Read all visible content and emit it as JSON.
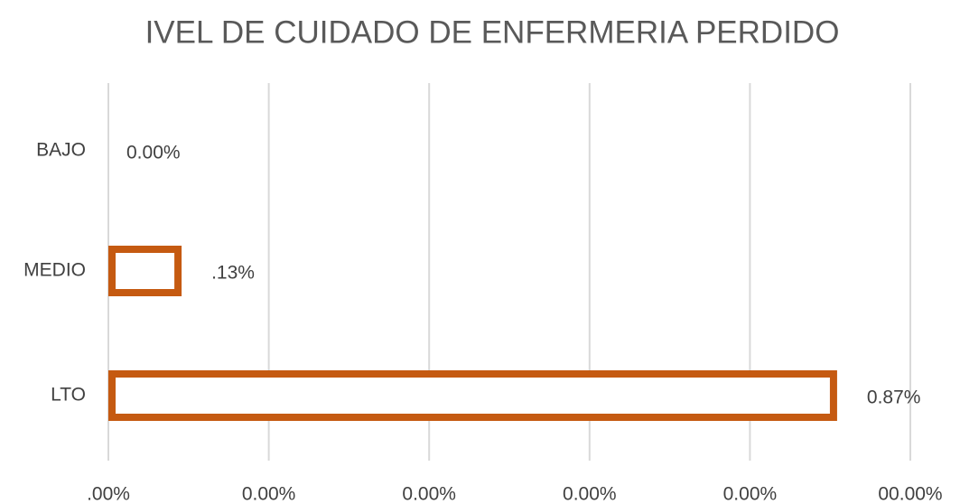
{
  "chart_data": {
    "type": "hbar",
    "title": "IVEL DE CUIDADO DE ENFERMERIA PERDIDO",
    "categories": [
      "BAJO",
      "MEDIO",
      "LTO"
    ],
    "values": [
      0,
      9.13,
      90.87
    ],
    "value_labels": [
      "0.00%",
      ".13%",
      "0.87%"
    ],
    "color": "#c55a11",
    "xlim": [
      0,
      100
    ],
    "xticks": [
      {
        "value": 0,
        "label": ".00%"
      },
      {
        "value": 20,
        "label": "0.00%"
      },
      {
        "value": 40,
        "label": "0.00%"
      },
      {
        "value": 60,
        "label": "0.00%"
      },
      {
        "value": 80,
        "label": "0.00%"
      },
      {
        "value": 100,
        "label": "00.00%"
      }
    ],
    "grid": true
  }
}
